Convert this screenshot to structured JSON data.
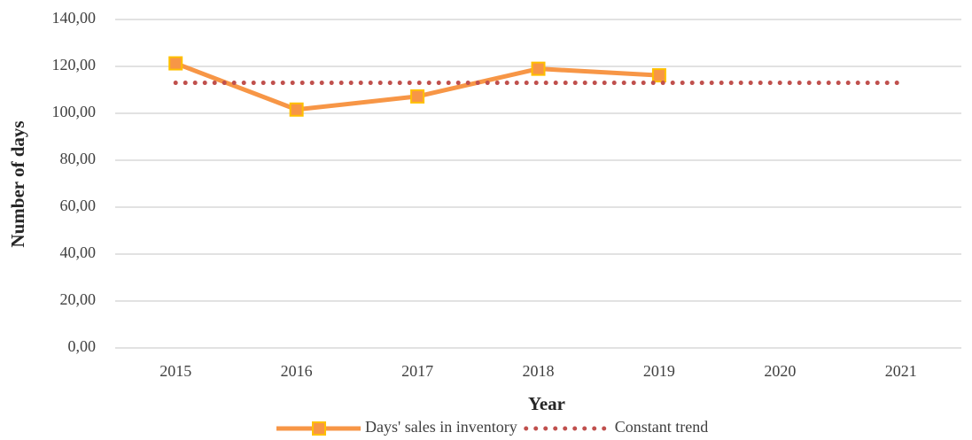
{
  "chart_data": {
    "type": "line",
    "categories": [
      "2015",
      "2016",
      "2017",
      "2018",
      "2019",
      "2020",
      "2021"
    ],
    "series": [
      {
        "name": "Days' sales in inventory",
        "color": "#f79646",
        "marker_edge": "#ffc000",
        "style": "solid",
        "marker": "square",
        "values": [
          121.3,
          101.6,
          107.2,
          119.0,
          116.2,
          null,
          null
        ]
      },
      {
        "name": "Constant trend",
        "color": "#c0504d",
        "style": "dotted",
        "marker": "none",
        "values": [
          113,
          113,
          113,
          113,
          113,
          113,
          113
        ]
      }
    ],
    "xlabel": "Year",
    "ylabel": "Number of days",
    "ylim": [
      0,
      140
    ],
    "yticks": [
      {
        "value": 0,
        "label": "0,00"
      },
      {
        "value": 20,
        "label": "20,00"
      },
      {
        "value": 40,
        "label": "40,00"
      },
      {
        "value": 60,
        "label": "60,00"
      },
      {
        "value": 80,
        "label": "80,00"
      },
      {
        "value": 100,
        "label": "100,00"
      },
      {
        "value": 120,
        "label": "120,00"
      },
      {
        "value": 140,
        "label": "140,00"
      }
    ],
    "grid": true,
    "legend": "bottom"
  }
}
